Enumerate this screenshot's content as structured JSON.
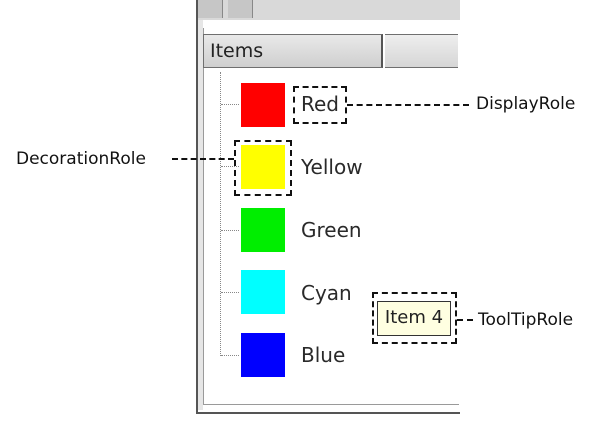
{
  "view": {
    "header": {
      "title": "Items"
    },
    "items": [
      {
        "label": "Red",
        "color": "#ff0000",
        "tooltip": ""
      },
      {
        "label": "Yellow",
        "color": "#ffff00",
        "tooltip": ""
      },
      {
        "label": "Green",
        "color": "#00ee00",
        "tooltip": ""
      },
      {
        "label": "Cyan",
        "color": "#00ffff",
        "tooltip": "Item 4"
      },
      {
        "label": "Blue",
        "color": "#0000ff",
        "tooltip": ""
      }
    ]
  },
  "annotations": {
    "display_role": "DisplayRole",
    "decoration_role": "DecorationRole",
    "tooltip_role": "ToolTipRole"
  }
}
